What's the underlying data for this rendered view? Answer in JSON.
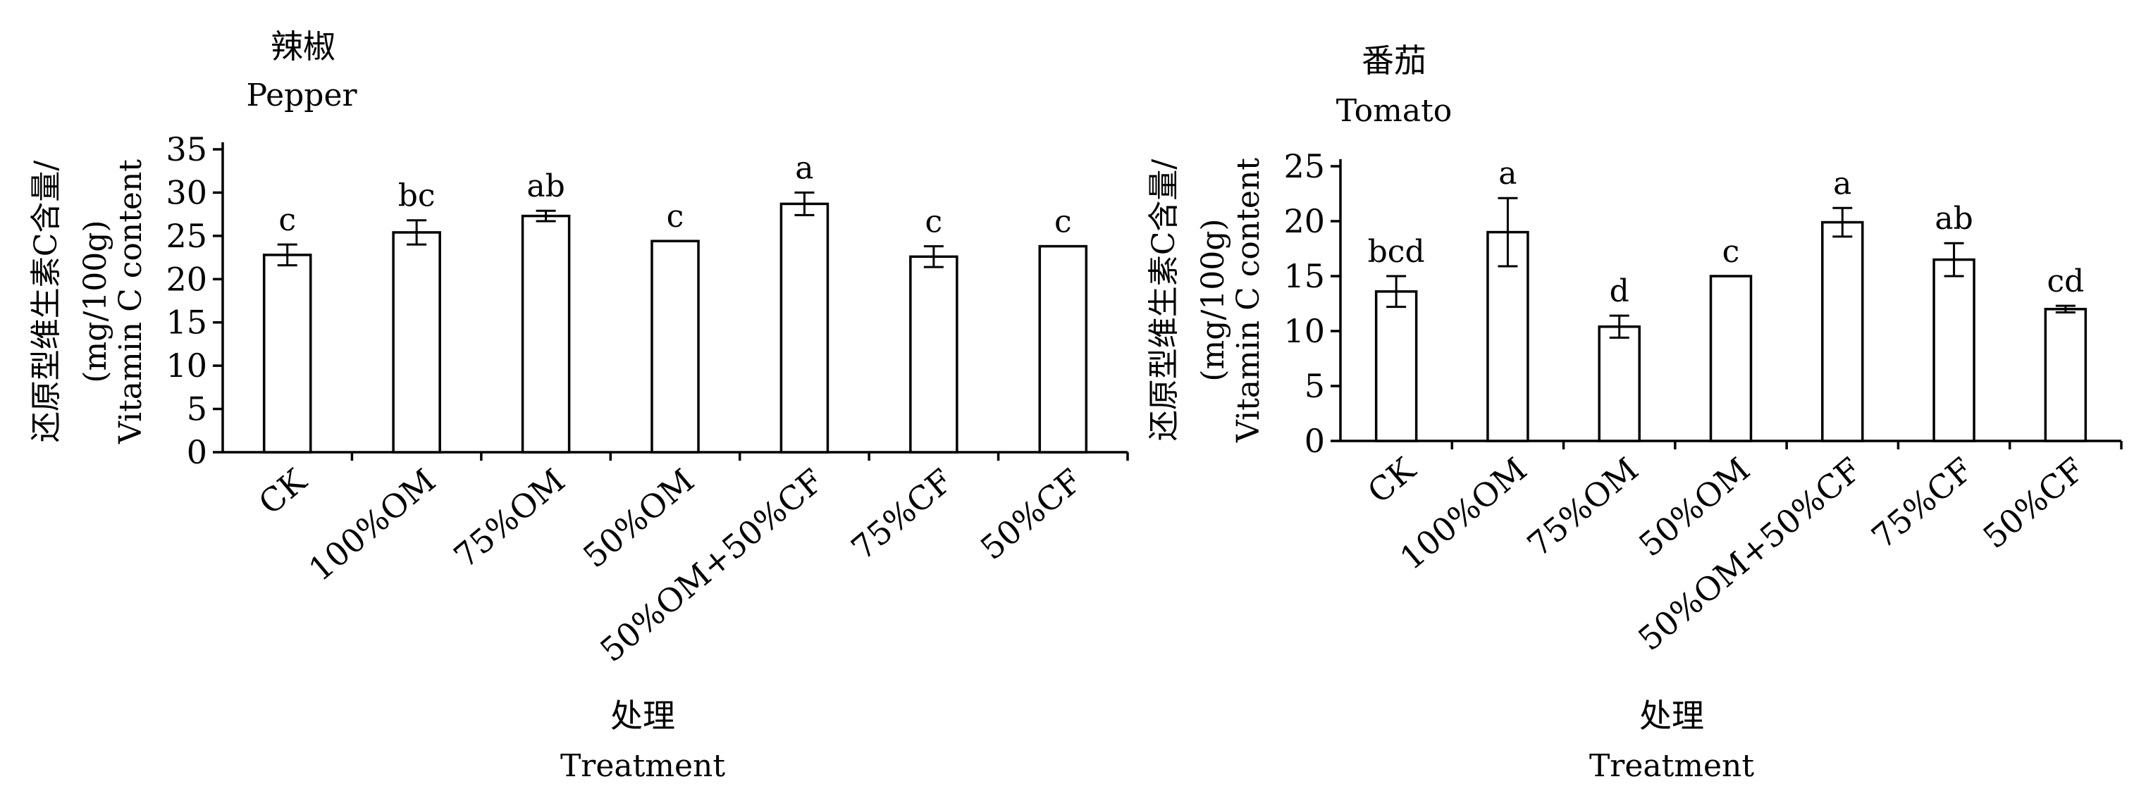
{
  "chart_data": [
    {
      "type": "bar",
      "title": "辣椒",
      "subtitle": "Pepper",
      "ylabel_lines": [
        "还原型维生素C含量/",
        "(mg/100g)",
        "Vitamin C content"
      ],
      "xlabel_lines": [
        "处理",
        "Treatment"
      ],
      "categories": [
        "CK",
        "100%OM",
        "75%OM",
        "50%OM",
        "50%OM+50%CF",
        "75%CF",
        "50%CF"
      ],
      "values": [
        22.8,
        25.4,
        27.3,
        24.4,
        28.7,
        22.6,
        23.8
      ],
      "errors": [
        1.2,
        1.4,
        0.6,
        0.0,
        1.3,
        1.2,
        0.0
      ],
      "letters": [
        "c",
        "bc",
        "ab",
        "c",
        "a",
        "c",
        "c"
      ],
      "ylim": [
        0,
        35
      ],
      "yticks": [
        0,
        5,
        10,
        15,
        20,
        25,
        30,
        35
      ],
      "grid": false
    },
    {
      "type": "bar",
      "title": "番茄",
      "subtitle": "Tomato",
      "ylabel_lines": [
        "还原型维生素C含量/",
        "(mg/100g)",
        "Vitamin C content"
      ],
      "xlabel_lines": [
        "处理",
        "Treatment"
      ],
      "categories": [
        "CK",
        "100%OM",
        "75%OM",
        "50%OM",
        "50%OM+50%CF",
        "75%CF",
        "50%CF"
      ],
      "values": [
        13.6,
        19.0,
        10.4,
        15.0,
        19.9,
        16.5,
        12.0
      ],
      "errors": [
        1.4,
        3.1,
        1.0,
        0.0,
        1.3,
        1.5,
        0.3
      ],
      "letters": [
        "bcd",
        "a",
        "d",
        "c",
        "a",
        "ab",
        "cd"
      ],
      "ylim": [
        0,
        25
      ],
      "yticks": [
        0,
        5,
        10,
        15,
        20,
        25
      ],
      "grid": false
    }
  ]
}
